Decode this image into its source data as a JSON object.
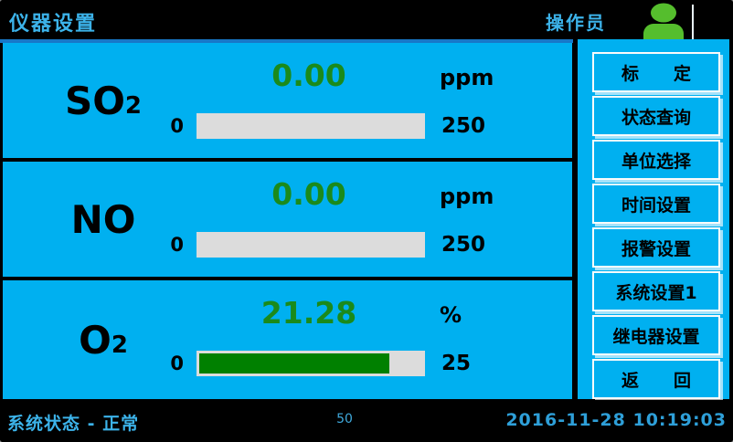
{
  "title_bar": {
    "title": "仪器设置",
    "user_label": "操作员"
  },
  "colors": {
    "panel_cyan": "#00B0F0",
    "accent_blue": "#1778C8",
    "title_text_blue": "#3CB3EA",
    "value_green": "#1B8A1B",
    "bar_fill_green": "#008000",
    "bar_track_gray": "#DCDCDC",
    "icon_green": "#55BE2D",
    "background_black": "#000000"
  },
  "channels": [
    {
      "formula": "SO",
      "formula_sub": "2",
      "value": "0.00",
      "unit": "ppm",
      "range_min": "0",
      "range_max": "250",
      "bar_percent": 0
    },
    {
      "formula": "NO",
      "formula_sub": "",
      "value": "0.00",
      "unit": "ppm",
      "range_min": "0",
      "range_max": "250",
      "bar_percent": 0
    },
    {
      "formula": "O",
      "formula_sub": "2",
      "value": "21.28",
      "unit": "%",
      "range_min": "0",
      "range_max": "25",
      "bar_percent": 85.1
    }
  ],
  "sidebar": {
    "buttons": [
      {
        "label": "标　　定"
      },
      {
        "label": "状态查询"
      },
      {
        "label": "单位选择"
      },
      {
        "label": "时间设置"
      },
      {
        "label": "报警设置"
      },
      {
        "label": "系统设置1"
      },
      {
        "label": "继电器设置"
      },
      {
        "label": "返　　回"
      }
    ]
  },
  "status_bar": {
    "status_text": "系统状态 - 正常",
    "center_value": "50",
    "datetime": "2016-11-28 10:19:03"
  }
}
